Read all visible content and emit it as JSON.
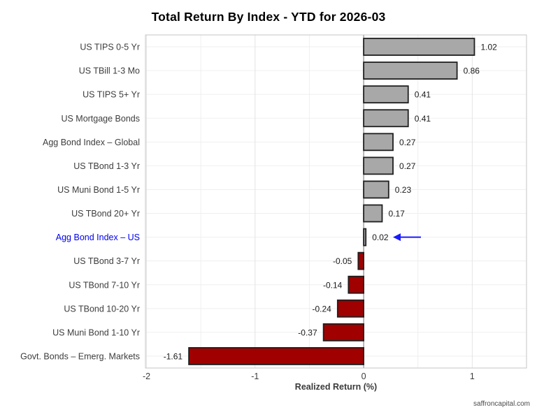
{
  "page": {
    "title": "Total Return By Index - YTD for 2026-03",
    "watermark": "saffroncapital.com"
  },
  "chart_data": {
    "type": "bar",
    "orientation": "horizontal",
    "title": "Total Return By Index - YTD for 2026-03",
    "xlabel": "Realized Return (%)",
    "ylabel": "",
    "xlim": [
      -2.01,
      1.5
    ],
    "x_ticks": [
      -2,
      -1,
      0,
      1
    ],
    "x_minor_grid": [
      -1.5,
      -0.5,
      0.5
    ],
    "grid": "on",
    "legend": "none",
    "value_format_decimals": 2,
    "categories": [
      "US TIPS 0-5 Yr",
      "US TBill 1-3 Mo",
      "US TIPS 5+ Yr",
      "US Mortgage Bonds",
      "Agg Bond Index – Global",
      "US TBond 1-3 Yr",
      "US Muni Bond 1-5 Yr",
      "US TBond 20+ Yr",
      "Agg Bond Index – US",
      "US TBond 3-7 Yr",
      "US TBond 7-10 Yr",
      "US TBond 10-20 Yr",
      "US Muni Bond 1-10 Yr",
      "Govt. Bonds – Emerg. Markets"
    ],
    "values": [
      1.02,
      0.86,
      0.41,
      0.41,
      0.27,
      0.27,
      0.23,
      0.17,
      0.02,
      -0.05,
      -0.14,
      -0.24,
      -0.37,
      -1.61
    ],
    "highlight": {
      "index": 8,
      "category": "Agg Bond Index – US",
      "annotation": "left-pointing-arrow"
    },
    "colors": {
      "positive_bar": "#a8a8a8",
      "negative_bar": "#a00000",
      "bar_border": "#1f1f1f",
      "highlight_label": "#0000ee",
      "arrow": "#1a1aff",
      "grid_major": "#e4e4e4",
      "grid_minor": "#efefef",
      "zero_line": "#8c8c8c",
      "panel_border": "#c6c6c6",
      "panel_bg": "#ffffff",
      "category_text": "#3d3d3d",
      "tick_text": "#3d3d3d",
      "value_text": "#1a1a1a"
    }
  }
}
